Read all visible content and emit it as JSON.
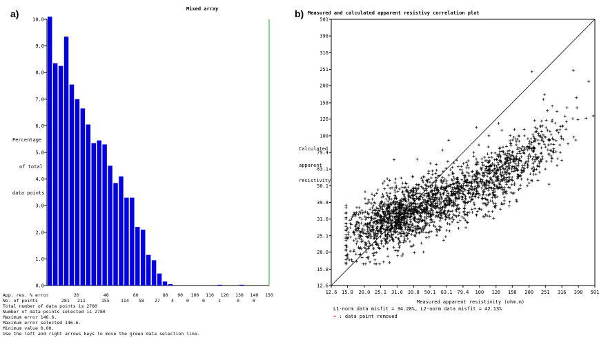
{
  "left": {
    "panel_label": "a)",
    "title": "Mixed array",
    "y_label_lines": [
      "Percentage",
      "of total",
      "data points"
    ],
    "summary_lines": [
      "Total number of data points is 2780",
      "Number of data points selected is 2780",
      "Maximum error 146.6.",
      "Maximum error selected 146.6.",
      "Minimum value 0.00.",
      "Use the left and right arrows keys to move the green data selection line."
    ],
    "axis_row_label": "App. res. % error",
    "count_row_label": "No. of points",
    "colors": {
      "bars": "#0000ee",
      "selection_line": "#33cc33",
      "axis": "#000000"
    }
  },
  "right": {
    "panel_label": "b)",
    "title": "Measured and calculated apparent resistivy correlation plot",
    "y_label_lines": [
      "Calculated",
      "apparent",
      "resistivity"
    ],
    "misfit_text": "L1-norm data misfit = 34.28%,  L2-norm data misfit = 42.13%",
    "legend_symbol": "+",
    "legend_text": " : data  point removed",
    "colors": {
      "points": "#000000",
      "removed": "#e00000",
      "diagonal": "#000000"
    }
  },
  "chart_data": [
    {
      "type": "bar",
      "title": "Mixed array",
      "xlabel": "App. res. % error",
      "ylabel": "Percentage of total data points",
      "ylim": [
        0,
        10
      ],
      "yticks": [
        "0.0",
        "1.0",
        "2.0",
        "3.0",
        "4.0",
        "5.0",
        "6.0",
        "7.0",
        "8.0",
        "9.0",
        "10.0"
      ],
      "xlim": [
        0,
        150
      ],
      "x_tick_labels": [
        "20",
        "40",
        "60",
        "80",
        "90",
        "100",
        "110",
        "120",
        "130",
        "140",
        "150"
      ],
      "x_tick_positions": [
        20,
        40,
        60,
        80,
        90,
        100,
        110,
        120,
        130,
        140,
        150
      ],
      "point_counts": [
        "281",
        "211",
        "155",
        "114",
        "58",
        "27",
        "4",
        "0",
        "0",
        "1",
        "0",
        "0"
      ],
      "bin_width": 3.7,
      "selection_line_x": 150,
      "values": [
        10.1,
        8.35,
        8.25,
        9.35,
        7.55,
        7.0,
        6.65,
        6.05,
        5.35,
        5.45,
        5.3,
        4.5,
        3.85,
        4.1,
        3.3,
        3.3,
        2.2,
        2.1,
        1.15,
        0.95,
        0.45,
        0.15,
        0.05,
        0,
        0,
        0,
        0,
        0,
        0,
        0,
        0,
        0.03,
        0,
        0,
        0,
        0.03,
        0,
        0
      ]
    },
    {
      "type": "scatter",
      "title": "Measured and calculated apparent resistivy correlation plot",
      "xlabel": "Measured apparent resistivity (ohm.m)",
      "ylabel": "Calculated apparent resistivity",
      "xlim": [
        12.6,
        501
      ],
      "ylim": [
        12.6,
        501
      ],
      "scale": "log",
      "ticks": [
        "12.6",
        "15.8",
        "20.0",
        "25.1",
        "31.6",
        "39.8",
        "50.1",
        "63.1",
        "79.4",
        "100",
        "126",
        "158",
        "200",
        "251",
        "316",
        "398",
        "501"
      ],
      "diagonal": true,
      "n_points": 2780,
      "trend": "log10(calc) = 1.55 + 0.38*(log10(meas) - 1.60), scatter sd 0.09 in log10 units",
      "sample_points": [
        [
          21.2,
          10.0
        ],
        [
          31.4,
          27.9
        ],
        [
          46.1,
          56.5
        ],
        [
          74.2,
          65.3
        ],
        [
          95.7,
          112.3
        ],
        [
          130.6,
          118.9
        ],
        [
          208.0,
          243.0
        ],
        [
          200.0,
          52.1
        ],
        [
          30.3,
          71.8
        ],
        [
          15.5,
          37.0
        ],
        [
          20.4,
          21.0
        ],
        [
          371.0,
          247.0
        ],
        [
          460.0,
          212.0
        ],
        [
          276.0,
          151.0
        ]
      ]
    }
  ]
}
